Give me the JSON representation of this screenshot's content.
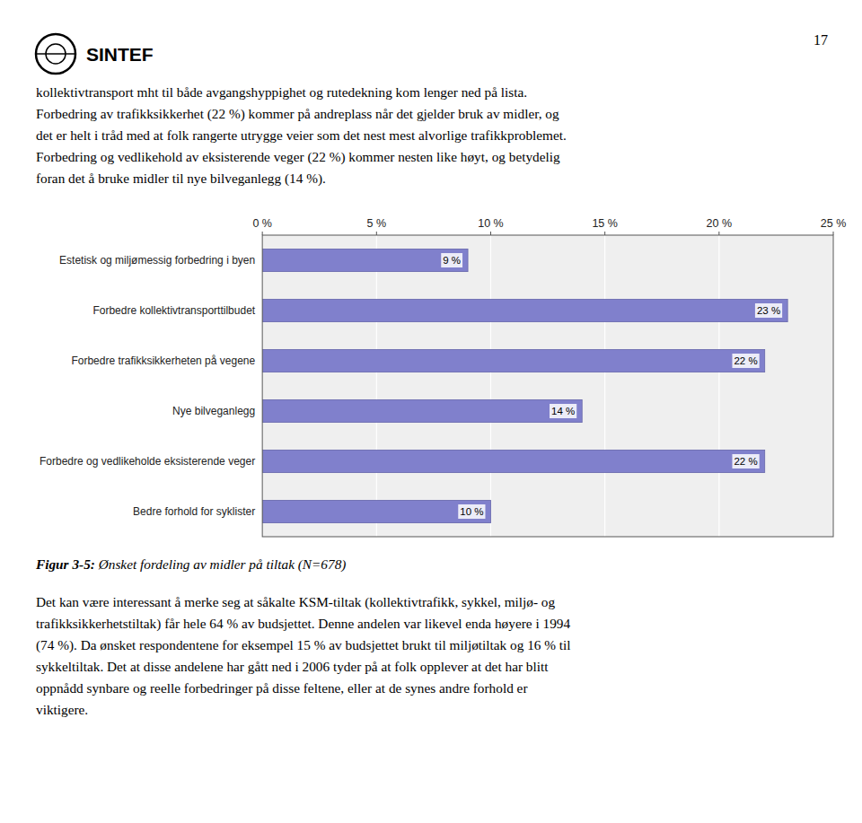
{
  "chart_data": {
    "type": "bar",
    "orientation": "horizontal",
    "categories": [
      "Estetisk og miljømessig forbedring i byen",
      "Forbedre kollektivtransporttilbudet",
      "Forbedre trafikksikkerheten på vegene",
      "Nye bilveganlegg",
      "Forbedre og vedlikeholde eksisterende veger",
      "Bedre forhold for syklister"
    ],
    "values": [
      9,
      23,
      22,
      14,
      22,
      10
    ],
    "value_labels": [
      "9 %",
      "23 %",
      "22 %",
      "14 %",
      "22 %",
      "10 %"
    ],
    "data_labels": true,
    "color": "#8080cc",
    "xlim": [
      0,
      25
    ],
    "xticks": [
      {
        "value": 0,
        "label": "0 %"
      },
      {
        "value": 5,
        "label": "5 %"
      },
      {
        "value": 10,
        "label": "10 %"
      },
      {
        "value": 15,
        "label": "15 %"
      },
      {
        "value": 20,
        "label": "20 %"
      },
      {
        "value": 25,
        "label": "25 %"
      }
    ],
    "grid": true
  },
  "document": {
    "logo_text": "SINTEF",
    "page_number": "17",
    "header_lines": [
      "kollektivtransport mht til både avgangshyppighet og rutedekning kom lenger ned på lista.",
      "Forbedring av trafikksikkerhet (22 %) kommer på andreplass når det gjelder bruk av midler, og",
      "det er helt i tråd med at folk rangerte utrygge veier som det nest mest alvorlige trafikkproblemet.",
      "Forbedring og vedlikehold av eksisterende veger (22 %) kommer nesten like høyt, og betydelig",
      "foran det å bruke midler til nye bilveganlegg (14 %)."
    ],
    "caption_label": "Figur 3-5:",
    "caption_text": " Ønsket fordeling av midler på tiltak (N=678)",
    "footer_lines": [
      "Det kan være interessant å merke seg at såkalte KSM-tiltak (kollektivtrafikk, sykkel, miljø- og",
      "trafikksikkerhetstiltak) får hele 64 % av budsjettet. Denne andelen var likevel enda høyere i 1994",
      "(74 %). Da ønsket respondentene for eksempel 15 % av budsjettet brukt til miljøtiltak og 16 % til",
      "sykkeltiltak. Det at disse andelene har gått ned i 2006 tyder på at folk opplever at det har blitt",
      "oppnådd synbare og reelle forbedringer på disse feltene, eller at de synes andre forhold er",
      "viktigere."
    ]
  }
}
